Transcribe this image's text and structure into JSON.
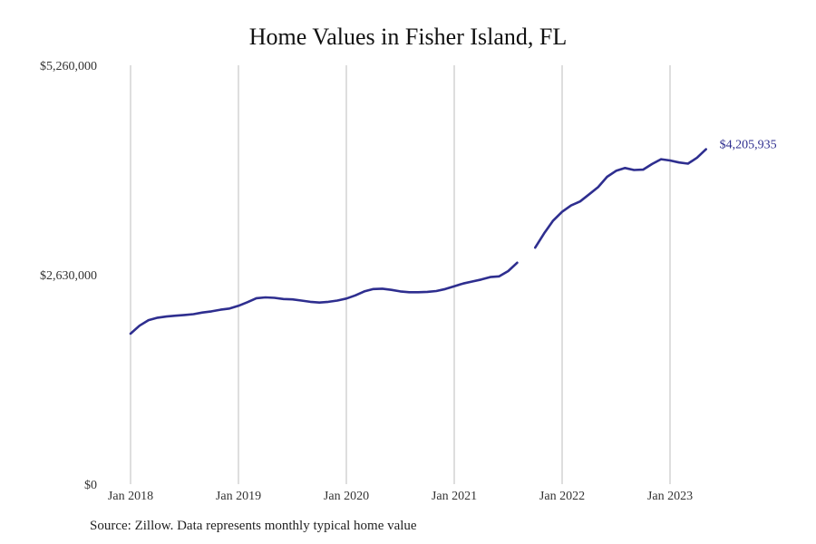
{
  "chart_data": {
    "type": "line",
    "title": "Home Values in Fisher Island, FL",
    "source": "Source: Zillow. Data represents monthly typical home value",
    "ylim": [
      0,
      5260000
    ],
    "y_ticks": [
      0,
      2630000,
      5260000
    ],
    "y_tick_labels": [
      "$0",
      "$2,630,000",
      "$5,260,000"
    ],
    "x_ticks": [
      "2018-01",
      "2019-01",
      "2020-01",
      "2021-01",
      "2022-01",
      "2023-01"
    ],
    "x_tick_labels": [
      "Jan 2018",
      "Jan 2019",
      "Jan 2020",
      "Jan 2021",
      "Jan 2022",
      "Jan 2023"
    ],
    "grid": "vertical",
    "line_color": "#2e2e8f",
    "grid_color": "#bdbdbd",
    "end_label": "$4,205,935",
    "segments": [
      {
        "x": [
          "2018-01",
          "2018-02",
          "2018-03",
          "2018-04",
          "2018-05",
          "2018-06",
          "2018-07",
          "2018-08",
          "2018-09",
          "2018-10",
          "2018-11",
          "2018-12",
          "2019-01",
          "2019-02",
          "2019-03",
          "2019-04",
          "2019-05",
          "2019-06",
          "2019-07",
          "2019-08",
          "2019-09",
          "2019-10",
          "2019-11",
          "2019-12",
          "2020-01",
          "2020-02",
          "2020-03",
          "2020-04",
          "2020-05",
          "2020-06",
          "2020-07",
          "2020-08",
          "2020-09",
          "2020-10",
          "2020-11",
          "2020-12",
          "2021-01",
          "2021-02",
          "2021-03",
          "2021-04",
          "2021-05",
          "2021-06",
          "2021-07",
          "2021-08"
        ],
        "y": [
          1890000,
          1990000,
          2060000,
          2090000,
          2105000,
          2115000,
          2125000,
          2135000,
          2155000,
          2170000,
          2190000,
          2205000,
          2240000,
          2285000,
          2335000,
          2345000,
          2340000,
          2325000,
          2320000,
          2305000,
          2290000,
          2280000,
          2290000,
          2305000,
          2330000,
          2370000,
          2420000,
          2450000,
          2455000,
          2440000,
          2420000,
          2410000,
          2410000,
          2415000,
          2425000,
          2450000,
          2485000,
          2520000,
          2545000,
          2570000,
          2600000,
          2610000,
          2675000,
          2780000
        ]
      },
      {
        "x": [
          "2021-10",
          "2021-11",
          "2021-12",
          "2022-01",
          "2022-02",
          "2022-03",
          "2022-04",
          "2022-05",
          "2022-06",
          "2022-07",
          "2022-08",
          "2022-09",
          "2022-10",
          "2022-11",
          "2022-12",
          "2023-01",
          "2023-02",
          "2023-03",
          "2023-04",
          "2023-05"
        ],
        "y": [
          2970000,
          3150000,
          3310000,
          3420000,
          3500000,
          3550000,
          3640000,
          3730000,
          3860000,
          3935000,
          3970000,
          3945000,
          3950000,
          4020000,
          4080000,
          4065000,
          4040000,
          4025000,
          4100000,
          4205935
        ]
      }
    ]
  }
}
